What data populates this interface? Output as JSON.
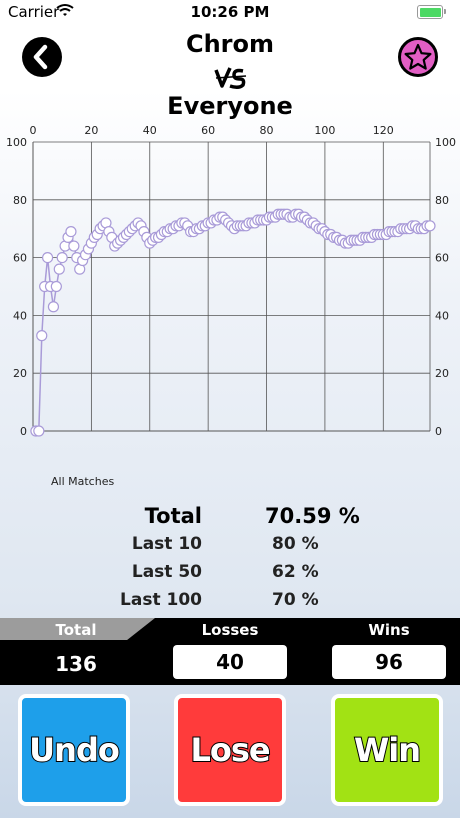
{
  "status_bar": {
    "carrier": "Carrier",
    "time": "10:26 PM"
  },
  "header": {
    "fighter": "Chrom",
    "vs": "VS",
    "opponent": "Everyone"
  },
  "chart_data": {
    "type": "line",
    "xlabel": "All Matches",
    "xlim": [
      0,
      136
    ],
    "ylim": [
      0,
      100
    ],
    "x_ticks": [
      0,
      20,
      40,
      60,
      80,
      100,
      120
    ],
    "y_ticks": [
      0,
      20,
      40,
      60,
      80,
      100
    ],
    "grid": true,
    "colors": {
      "line": "#a99bd8",
      "marker_fill": "#ffffff"
    },
    "points_x_y": [
      [
        1,
        0
      ],
      [
        2,
        0
      ],
      [
        3,
        33
      ],
      [
        4,
        50
      ],
      [
        5,
        60
      ],
      [
        6,
        50
      ],
      [
        7,
        43
      ],
      [
        8,
        50
      ],
      [
        9,
        56
      ],
      [
        10,
        60
      ],
      [
        11,
        64
      ],
      [
        12,
        67
      ],
      [
        13,
        69
      ],
      [
        14,
        64
      ],
      [
        15,
        60
      ],
      [
        16,
        56
      ],
      [
        17,
        59
      ],
      [
        18,
        61
      ],
      [
        19,
        63
      ],
      [
        20,
        65
      ],
      [
        21,
        67
      ],
      [
        22,
        68
      ],
      [
        23,
        70
      ],
      [
        24,
        71
      ],
      [
        25,
        72
      ],
      [
        26,
        69
      ],
      [
        27,
        67
      ],
      [
        28,
        64
      ],
      [
        29,
        65
      ],
      [
        30,
        66
      ],
      [
        31,
        67
      ],
      [
        32,
        68
      ],
      [
        33,
        69
      ],
      [
        34,
        70
      ],
      [
        35,
        71
      ],
      [
        36,
        72
      ],
      [
        37,
        71
      ],
      [
        38,
        69
      ],
      [
        39,
        67
      ],
      [
        40,
        65
      ],
      [
        41,
        66
      ],
      [
        42,
        67
      ],
      [
        43,
        67
      ],
      [
        44,
        68
      ],
      [
        45,
        69
      ],
      [
        46,
        69
      ],
      [
        47,
        70
      ],
      [
        48,
        70
      ],
      [
        49,
        71
      ],
      [
        50,
        71
      ],
      [
        51,
        72
      ],
      [
        52,
        72
      ],
      [
        53,
        71
      ],
      [
        54,
        69
      ],
      [
        55,
        69
      ],
      [
        56,
        70
      ],
      [
        57,
        70
      ],
      [
        58,
        71
      ],
      [
        59,
        71
      ],
      [
        60,
        72
      ],
      [
        61,
        72
      ],
      [
        62,
        73
      ],
      [
        63,
        73
      ],
      [
        64,
        74
      ],
      [
        65,
        74
      ],
      [
        66,
        73
      ],
      [
        67,
        72
      ],
      [
        68,
        71
      ],
      [
        69,
        70
      ],
      [
        70,
        71
      ],
      [
        71,
        71
      ],
      [
        72,
        71
      ],
      [
        73,
        71
      ],
      [
        74,
        72
      ],
      [
        75,
        72
      ],
      [
        76,
        72
      ],
      [
        77,
        73
      ],
      [
        78,
        73
      ],
      [
        79,
        73
      ],
      [
        80,
        73
      ],
      [
        81,
        74
      ],
      [
        82,
        74
      ],
      [
        83,
        74
      ],
      [
        84,
        75
      ],
      [
        85,
        75
      ],
      [
        86,
        75
      ],
      [
        87,
        75
      ],
      [
        88,
        74
      ],
      [
        89,
        74
      ],
      [
        90,
        75
      ],
      [
        91,
        75
      ],
      [
        92,
        74
      ],
      [
        93,
        74
      ],
      [
        94,
        73
      ],
      [
        95,
        72
      ],
      [
        96,
        72
      ],
      [
        97,
        71
      ],
      [
        98,
        70
      ],
      [
        99,
        70
      ],
      [
        100,
        69
      ],
      [
        101,
        68
      ],
      [
        102,
        68
      ],
      [
        103,
        67
      ],
      [
        104,
        67
      ],
      [
        105,
        66
      ],
      [
        106,
        66
      ],
      [
        107,
        65
      ],
      [
        108,
        65
      ],
      [
        109,
        66
      ],
      [
        110,
        66
      ],
      [
        111,
        66
      ],
      [
        112,
        66
      ],
      [
        113,
        67
      ],
      [
        114,
        67
      ],
      [
        115,
        67
      ],
      [
        116,
        67
      ],
      [
        117,
        68
      ],
      [
        118,
        68
      ],
      [
        119,
        68
      ],
      [
        120,
        68
      ],
      [
        121,
        68
      ],
      [
        122,
        69
      ],
      [
        123,
        69
      ],
      [
        124,
        69
      ],
      [
        125,
        69
      ],
      [
        126,
        70
      ],
      [
        127,
        70
      ],
      [
        128,
        70
      ],
      [
        129,
        70
      ],
      [
        130,
        71
      ],
      [
        131,
        71
      ],
      [
        132,
        70
      ],
      [
        133,
        70
      ],
      [
        134,
        70
      ],
      [
        135,
        71
      ],
      [
        136,
        71
      ]
    ]
  },
  "stats": {
    "total": {
      "label": "Total",
      "value": "70.59 %"
    },
    "last10": {
      "label": "Last 10",
      "value": "80 %"
    },
    "last50": {
      "label": "Last 50",
      "value": "62 %"
    },
    "last100": {
      "label": "Last 100",
      "value": "70 %"
    }
  },
  "counts": {
    "total_label": "Total",
    "total_value": "136",
    "losses_label": "Losses",
    "losses_value": "40",
    "wins_label": "Wins",
    "wins_value": "96"
  },
  "buttons": {
    "undo": "Undo",
    "lose": "Lose",
    "win": "Win"
  },
  "icons": {
    "back": "chevron-left-icon",
    "favorite": "star-icon"
  }
}
